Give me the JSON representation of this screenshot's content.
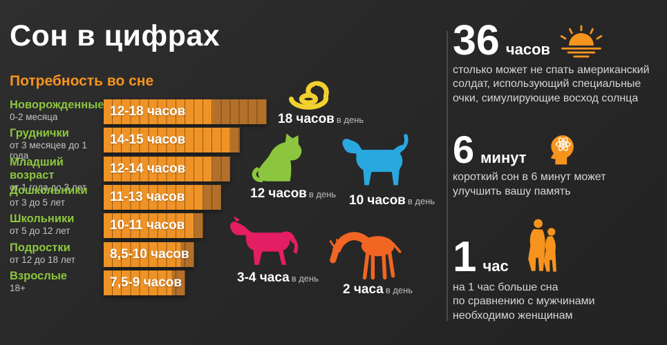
{
  "page": {
    "title": "Сон в цифрах",
    "subtitle": "Потребность во сне"
  },
  "colors": {
    "background": "#272727",
    "accent_orange": "#f7941d",
    "bar_bright": "#ef9327",
    "bar_dark": "#b2702a",
    "label_green": "#8cc63e",
    "text_white": "#ffffff",
    "text_gray": "#c4c4c4",
    "snake_yellow": "#f2d12e",
    "cat_green": "#8cc63e",
    "dog_blue": "#29a8e0",
    "horse_pink": "#e31e62",
    "giraffe_orange": "#f26522"
  },
  "chart_data": [
    {
      "type": "bar",
      "orientation": "horizontal",
      "title": "Потребность во сне",
      "unit": "часов сна в день",
      "categories": [
        "Новорожденные",
        "Груднички",
        "Младший возраст",
        "Дошкольники",
        "Школьники",
        "Подростки",
        "Взрослые"
      ],
      "category_sublabels": [
        "0-2 месяца",
        "от 3 месяцев до 1 года",
        "от 1 года до 3 лет",
        "от 3 до 5 лет",
        "от 5 до 12 лет",
        "от 12 до 18 лет",
        "18+"
      ],
      "values_min": [
        12,
        14,
        12,
        11,
        10,
        8.5,
        7.5
      ],
      "values_max": [
        18,
        15,
        14,
        13,
        11,
        10,
        9
      ],
      "bar_labels": [
        "12-18 часов",
        "14-15 часов",
        "12-14 часов",
        "11-13 часов",
        "10-11 часов",
        "8,5-10 часов",
        "7,5-9 часов"
      ],
      "xlim": [
        0,
        18
      ],
      "grid": "segmented, 1 segment = 1 hour"
    },
    {
      "type": "pictogram",
      "items": [
        {
          "name": "snake",
          "hours": 18,
          "label": "18 часов",
          "suffix": "в день",
          "color": "#f2d12e"
        },
        {
          "name": "cat",
          "hours": 12,
          "label": "12 часов",
          "suffix": "в день",
          "color": "#8cc63e"
        },
        {
          "name": "dog",
          "hours": 10,
          "label": "10 часов",
          "suffix": "в день",
          "color": "#29a8e0"
        },
        {
          "name": "horse",
          "hours": "3-4",
          "label": "3-4 часа",
          "suffix": "в день",
          "color": "#e31e62"
        },
        {
          "name": "giraffe",
          "hours": 2,
          "label": "2 часа",
          "suffix": "в день",
          "color": "#f26522"
        }
      ]
    }
  ],
  "facts": [
    {
      "number": "36",
      "unit": "часов",
      "icon": "sunrise-icon",
      "text": "столько может не спать американский\nсолдат, использующий специальные\nочки, симулирующие восход солнца"
    },
    {
      "number": "6",
      "unit": "минут",
      "icon": "brain-icon",
      "text": "короткий сон в 6 минут может\nулучшить вашу память"
    },
    {
      "number": "1",
      "unit": "час",
      "icon": "couple-icon",
      "text": "на 1 час больше сна\nпо сравнению с мужчинами\nнеобходимо женщинам"
    }
  ]
}
